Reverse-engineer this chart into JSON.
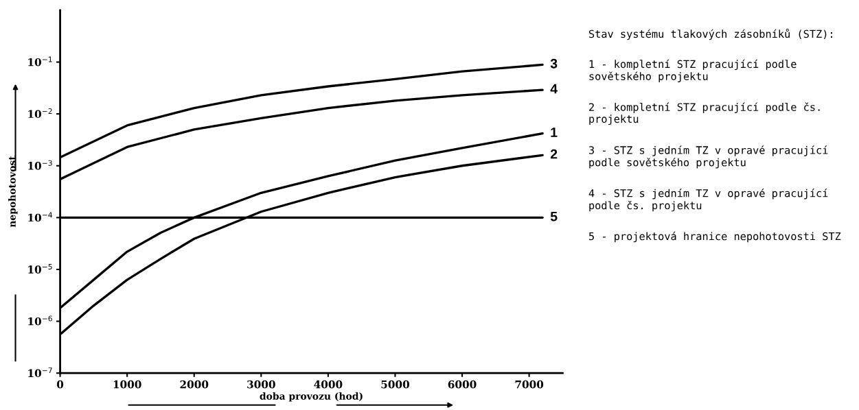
{
  "chart_data": {
    "type": "line",
    "xlabel": "doba provozu (hod)",
    "ylabel": "nepohotovost",
    "log": "y",
    "xlim": [
      0,
      7500
    ],
    "xticks": [
      0,
      1000,
      2000,
      3000,
      4000,
      5000,
      6000,
      7000
    ],
    "ylim": [
      1e-07,
      1
    ],
    "yticks": [
      {
        "value": 1e-07,
        "label": "10$^{−7}$"
      },
      {
        "value": 1e-06,
        "label": "10$^{−6}$"
      },
      {
        "value": 1e-05,
        "label": "10$^{−5}$"
      },
      {
        "value": 0.0001,
        "label": "10$^{−4}$"
      },
      {
        "value": 0.001,
        "label": "10$^{−3}$"
      },
      {
        "value": 0.01,
        "label": "10$^{−2}$"
      },
      {
        "value": 0.1,
        "label": "10$^{−1}$"
      }
    ],
    "grid": false,
    "legend": false,
    "marker": "none",
    "line_style": "solid",
    "series": [
      {
        "name": "3",
        "color": "#000000",
        "x": [
          0,
          1000,
          2000,
          3000,
          4000,
          5000,
          6000,
          7200
        ],
        "values": [
          0.00145,
          0.006,
          0.013,
          0.023,
          0.034,
          0.047,
          0.066,
          0.089
        ]
      },
      {
        "name": "4",
        "color": "#000000",
        "x": [
          0,
          1000,
          2000,
          3000,
          4000,
          5000,
          6000,
          7200
        ],
        "values": [
          0.00055,
          0.0023,
          0.005,
          0.0083,
          0.013,
          0.018,
          0.023,
          0.029
        ]
      },
      {
        "name": "1",
        "color": "#000000",
        "x": [
          0,
          500,
          1000,
          1500,
          2000,
          3000,
          4000,
          5000,
          6000,
          7200
        ],
        "values": [
          1.8e-06,
          6.3e-06,
          2.2e-05,
          5.1e-05,
          0.0001,
          0.0003,
          0.00063,
          0.00126,
          0.0022,
          0.0042
        ]
      },
      {
        "name": "2",
        "color": "#000000",
        "x": [
          0,
          500,
          1000,
          1500,
          2000,
          3000,
          4000,
          5000,
          6000,
          7200
        ],
        "values": [
          5.6e-07,
          2e-06,
          6.3e-06,
          1.6e-05,
          3.9e-05,
          0.00013,
          0.0003,
          0.0006,
          0.001,
          0.0016
        ]
      },
      {
        "name": "5",
        "color": "#000000",
        "x": [
          0,
          7200
        ],
        "values": [
          0.0001,
          0.0001
        ]
      }
    ],
    "annotations": [
      "Stav systému tlakových zásobníků (STZ):",
      "1 - kompletní STZ pracující podle sovětského projektu",
      "2 - kompletní STZ pracující podle čs. projektu",
      "3 - STZ s jedním TZ v opravé pracující podle sovětského projektu",
      "4 - STZ s jedním TZ v opravé pracující podle čs. projektu",
      "5 - projektová hranice nepohotovosti STZ"
    ]
  }
}
